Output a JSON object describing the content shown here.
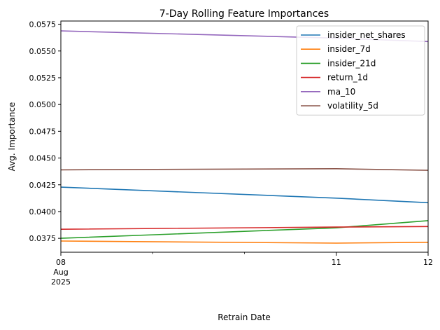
{
  "chart_data": {
    "type": "line",
    "title": "7-Day Rolling Feature Importances",
    "xlabel": "Retrain Date",
    "ylabel": "Avg. Importance",
    "x": [
      "2025-08-08",
      "2025-08-11",
      "2025-08-12"
    ],
    "x_ticks": [
      {
        "date": "2025-08-08",
        "label": "08",
        "sub": [
          "Aug",
          "2025"
        ]
      },
      {
        "date": "2025-08-11",
        "label": "11",
        "sub": []
      },
      {
        "date": "2025-08-12",
        "label": "12",
        "sub": []
      }
    ],
    "ylim": [
      0.0362,
      0.0578
    ],
    "y_ticks": [
      "0.0375",
      "0.0400",
      "0.0425",
      "0.0450",
      "0.0475",
      "0.0500",
      "0.0525",
      "0.0550",
      "0.0575"
    ],
    "grid": false,
    "legend_position": "top-right",
    "series": [
      {
        "name": "insider_net_shares",
        "color": "#1f77b4",
        "values": [
          0.04228,
          0.04125,
          0.04083
        ]
      },
      {
        "name": "insider_7d",
        "color": "#ff7f0e",
        "values": [
          0.03725,
          0.03705,
          0.03713
        ]
      },
      {
        "name": "insider_21d",
        "color": "#2ca02c",
        "values": [
          0.0375,
          0.03848,
          0.03915
        ]
      },
      {
        "name": "return_1d",
        "color": "#d62728",
        "values": [
          0.03835,
          0.03855,
          0.0386
        ]
      },
      {
        "name": "ma_10",
        "color": "#9467bd",
        "values": [
          0.05688,
          0.0562,
          0.05588
        ]
      },
      {
        "name": "volatility_5d",
        "color": "#8c564b",
        "values": [
          0.0439,
          0.044,
          0.04385
        ]
      }
    ]
  }
}
